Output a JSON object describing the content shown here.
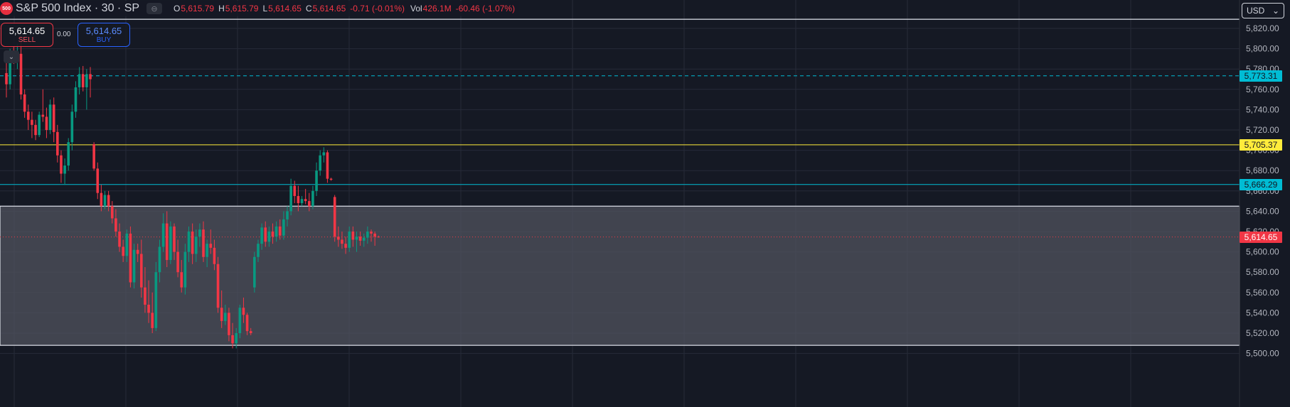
{
  "header": {
    "logo_text": "500",
    "symbol_title": "S&P 500 Index · 30 · SP",
    "ohlc": [
      {
        "key": "O",
        "value": "5,615.79"
      },
      {
        "key": "H",
        "value": "5,615.79"
      },
      {
        "key": "L",
        "value": "5,614.65"
      },
      {
        "key": "C",
        "value": "5,614.65"
      }
    ],
    "change": "-0.71 (-0.01%)",
    "volume_label": "Vol",
    "volume_value": "426.1M",
    "volume_change": "-60.46 (-1.07%)"
  },
  "trade": {
    "sell_price": "5,614.65",
    "sell_label": "SELL",
    "spread": "0.00",
    "buy_price": "5,614.65",
    "buy_label": "BUY"
  },
  "scale": {
    "currency": "USD"
  },
  "colors": {
    "up": "#089981",
    "down": "#f23645",
    "cyan": "#00bcd4",
    "yellow": "#ffeb3b",
    "background": "#151924",
    "grid": "#262b38",
    "zone": "#50535e"
  },
  "chart_data": {
    "type": "candlestick",
    "y_ticks": [
      "5,500.00",
      "5,520.00",
      "5,540.00",
      "5,560.00",
      "5,580.00",
      "5,600.00",
      "5,620.00",
      "5,640.00",
      "5,660.00",
      "5,680.00",
      "5,700.00",
      "5,720.00",
      "5,740.00",
      "5,760.00",
      "5,780.00",
      "5,800.00",
      "5,820.00"
    ],
    "ylim": [
      5500,
      5830
    ],
    "horizontal_lines": [
      {
        "label": "5,773.31",
        "value": 5773.31,
        "style": "dashed",
        "color": "cyan"
      },
      {
        "label": "5,705.37",
        "value": 5705.37,
        "style": "solid",
        "color": "yellow"
      },
      {
        "label": "5,666.29",
        "value": 5666.29,
        "style": "solid",
        "color": "cyan"
      },
      {
        "label": "5,614.65",
        "value": 5614.65,
        "style": "dotted",
        "color": "down",
        "current": true
      }
    ],
    "zone": {
      "top": 5645,
      "bottom": 5508
    },
    "top_line": 5829,
    "candles": [
      [
        5776,
        5795,
        5752,
        5765
      ],
      [
        5765,
        5800,
        5760,
        5795
      ],
      [
        5795,
        5802,
        5785,
        5790
      ],
      [
        5790,
        5805,
        5780,
        5795
      ],
      [
        5795,
        5812,
        5750,
        5755
      ],
      [
        5755,
        5760,
        5732,
        5738
      ],
      [
        5738,
        5745,
        5720,
        5730
      ],
      [
        5730,
        5738,
        5712,
        5725
      ],
      [
        5725,
        5730,
        5710,
        5715
      ],
      [
        5715,
        5738,
        5713,
        5735
      ],
      [
        5735,
        5760,
        5728,
        5733
      ],
      [
        5733,
        5742,
        5712,
        5720
      ],
      [
        5720,
        5750,
        5716,
        5745
      ],
      [
        5745,
        5752,
        5708,
        5718
      ],
      [
        5718,
        5725,
        5688,
        5695
      ],
      [
        5695,
        5700,
        5668,
        5677
      ],
      [
        5677,
        5692,
        5666,
        5685
      ],
      [
        5685,
        5712,
        5680,
        5708
      ],
      [
        5708,
        5745,
        5700,
        5738
      ],
      [
        5738,
        5768,
        5732,
        5762
      ],
      [
        5762,
        5782,
        5755,
        5775
      ],
      [
        5775,
        5783,
        5758,
        5762
      ],
      [
        5762,
        5780,
        5740,
        5775
      ],
      [
        5775,
        5782,
        5752,
        5770
      ],
      [
        5706,
        5708,
        5680,
        5682
      ],
      [
        5682,
        5688,
        5652,
        5658
      ],
      [
        5658,
        5666,
        5640,
        5645
      ],
      [
        5645,
        5660,
        5642,
        5656
      ],
      [
        5656,
        5660,
        5640,
        5645
      ],
      [
        5645,
        5650,
        5628,
        5633
      ],
      [
        5633,
        5642,
        5615,
        5620
      ],
      [
        5620,
        5628,
        5600,
        5605
      ],
      [
        5605,
        5612,
        5590,
        5596
      ],
      [
        5596,
        5622,
        5590,
        5618
      ],
      [
        5618,
        5625,
        5565,
        5570
      ],
      [
        5570,
        5608,
        5564,
        5602
      ],
      [
        5602,
        5608,
        5590,
        5598
      ],
      [
        5598,
        5612,
        5555,
        5565
      ],
      [
        5565,
        5585,
        5540,
        5548
      ],
      [
        5548,
        5572,
        5530,
        5540
      ],
      [
        5540,
        5560,
        5520,
        5525
      ],
      [
        5525,
        5590,
        5522,
        5580
      ],
      [
        5580,
        5612,
        5570,
        5605
      ],
      [
        5605,
        5638,
        5600,
        5628
      ],
      [
        5628,
        5640,
        5585,
        5592
      ],
      [
        5592,
        5630,
        5588,
        5625
      ],
      [
        5625,
        5628,
        5592,
        5600
      ],
      [
        5600,
        5612,
        5575,
        5580
      ],
      [
        5580,
        5592,
        5560,
        5565
      ],
      [
        5565,
        5608,
        5558,
        5600
      ],
      [
        5600,
        5625,
        5590,
        5620
      ],
      [
        5620,
        5628,
        5588,
        5598
      ],
      [
        5598,
        5622,
        5590,
        5615
      ],
      [
        5615,
        5628,
        5605,
        5622
      ],
      [
        5622,
        5630,
        5590,
        5595
      ],
      [
        5595,
        5612,
        5585,
        5608
      ],
      [
        5608,
        5622,
        5598,
        5604
      ],
      [
        5604,
        5612,
        5582,
        5588
      ],
      [
        5588,
        5595,
        5540,
        5545
      ],
      [
        5545,
        5562,
        5525,
        5532
      ],
      [
        5532,
        5548,
        5528,
        5540
      ],
      [
        5540,
        5545,
        5512,
        5518
      ],
      [
        5518,
        5530,
        5505,
        5510
      ],
      [
        5510,
        5525,
        5505,
        5520
      ],
      [
        5520,
        5548,
        5515,
        5545
      ],
      [
        5545,
        5555,
        5530,
        5538
      ],
      [
        5538,
        5540,
        5518,
        5522
      ],
      [
        5522,
        5525,
        5518,
        5520
      ],
      [
        5565,
        5600,
        5560,
        5595
      ],
      [
        5595,
        5612,
        5590,
        5608
      ],
      [
        5608,
        5628,
        5602,
        5624
      ],
      [
        5624,
        5630,
        5605,
        5610
      ],
      [
        5610,
        5625,
        5605,
        5620
      ],
      [
        5620,
        5628,
        5608,
        5615
      ],
      [
        5615,
        5630,
        5610,
        5625
      ],
      [
        5625,
        5632,
        5612,
        5616
      ],
      [
        5616,
        5640,
        5612,
        5632
      ],
      [
        5632,
        5645,
        5625,
        5640
      ],
      [
        5640,
        5672,
        5636,
        5665
      ],
      [
        5665,
        5670,
        5648,
        5655
      ],
      [
        5655,
        5665,
        5640,
        5648
      ],
      [
        5648,
        5655,
        5645,
        5652
      ],
      [
        5652,
        5662,
        5647,
        5650
      ],
      [
        5650,
        5658,
        5640,
        5645
      ],
      [
        5645,
        5665,
        5642,
        5660
      ],
      [
        5660,
        5688,
        5655,
        5680
      ],
      [
        5680,
        5700,
        5675,
        5695
      ],
      [
        5695,
        5703,
        5688,
        5698
      ],
      [
        5698,
        5700,
        5668,
        5672
      ],
      [
        5672,
        5673,
        5670,
        5671
      ],
      [
        5654,
        5656,
        5610,
        5615
      ],
      [
        5615,
        5625,
        5605,
        5612
      ],
      [
        5612,
        5620,
        5603,
        5608
      ],
      [
        5608,
        5615,
        5598,
        5604
      ],
      [
        5604,
        5625,
        5600,
        5620
      ],
      [
        5620,
        5625,
        5605,
        5612
      ],
      [
        5612,
        5620,
        5600,
        5615
      ],
      [
        5615,
        5620,
        5606,
        5611
      ],
      [
        5611,
        5618,
        5605,
        5614
      ],
      [
        5614,
        5625,
        5608,
        5620
      ],
      [
        5620,
        5622,
        5610,
        5618
      ],
      [
        5618,
        5620,
        5606,
        5615
      ],
      [
        5615,
        5616,
        5614,
        5614.65
      ]
    ]
  }
}
